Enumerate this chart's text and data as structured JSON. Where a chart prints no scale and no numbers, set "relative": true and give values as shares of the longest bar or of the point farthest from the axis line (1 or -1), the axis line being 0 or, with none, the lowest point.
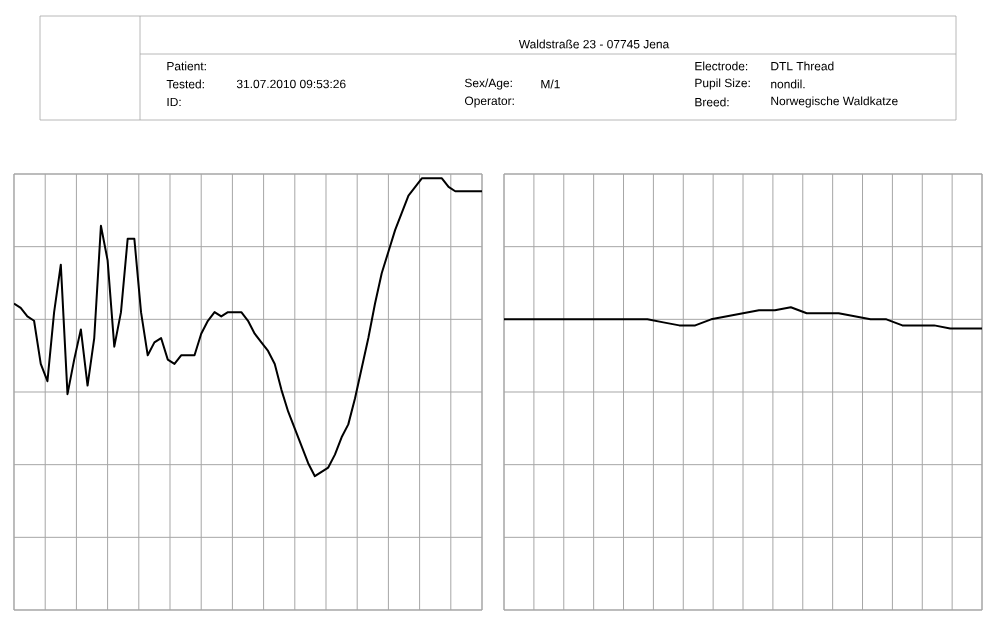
{
  "chart_data": [
    {
      "type": "other",
      "annotations": [
        "Waldstraße 23 - 07745 Jena",
        "Patient:",
        "Tested:",
        "31.07.2010 09:53:26",
        "ID:",
        "Sex/Age:",
        "M/1",
        "Operator:",
        "Electrode:",
        "DTL Thread",
        "Pupil Size:",
        "nondil.",
        "Breed:",
        "Norwegische Waldkatze"
      ]
    },
    {
      "type": "line",
      "relative": true,
      "grid": true,
      "color": "#000000",
      "categories": [
        null,
        null,
        null,
        null,
        null,
        null,
        null,
        null,
        null,
        null,
        null,
        null,
        null,
        null,
        null,
        null,
        null,
        null,
        null,
        null,
        null,
        null,
        null,
        null,
        null,
        null,
        null,
        null,
        null,
        null,
        null,
        null,
        null,
        null,
        null,
        null,
        null,
        null,
        null,
        null,
        null,
        null,
        null,
        null,
        null,
        null,
        null,
        null,
        null,
        null,
        null,
        null,
        null,
        null,
        null,
        null,
        null,
        null,
        null,
        null,
        null,
        null,
        null,
        null,
        null,
        null,
        null,
        null,
        null,
        null,
        null
      ],
      "values": [
        0.71,
        0.7,
        0.68,
        0.67,
        0.57,
        0.53,
        0.69,
        0.8,
        0.5,
        0.58,
        0.65,
        0.52,
        0.63,
        0.89,
        0.81,
        0.61,
        0.69,
        0.86,
        0.86,
        0.69,
        0.59,
        0.62,
        0.63,
        0.58,
        0.57,
        0.59,
        0.59,
        0.59,
        0.64,
        0.67,
        0.69,
        0.68,
        0.69,
        0.69,
        0.69,
        0.67,
        0.64,
        0.62,
        0.6,
        0.57,
        0.51,
        0.46,
        0.42,
        0.38,
        0.34,
        0.31,
        0.32,
        0.33,
        0.36,
        0.4,
        0.43,
        0.49,
        0.56,
        0.63,
        0.71,
        0.78,
        0.83,
        0.88,
        0.92,
        0.96,
        0.98,
        1.0,
        1.0,
        1.0,
        1.0,
        0.98,
        0.97,
        0.97,
        0.97,
        0.97,
        0.97
      ]
    },
    {
      "type": "line",
      "relative": true,
      "grid": true,
      "color": "#000000",
      "categories": [
        null,
        null,
        null,
        null,
        null,
        null,
        null,
        null,
        null,
        null,
        null,
        null,
        null,
        null,
        null,
        null,
        null,
        null,
        null,
        null,
        null,
        null,
        null,
        null,
        null,
        null,
        null,
        null,
        null,
        null,
        null
      ],
      "values": [
        0.96,
        0.96,
        0.96,
        0.96,
        0.96,
        0.96,
        0.96,
        0.96,
        0.96,
        0.96,
        0.95,
        0.94,
        0.94,
        0.96,
        0.97,
        0.98,
        0.99,
        0.99,
        1.0,
        0.98,
        0.98,
        0.98,
        0.97,
        0.96,
        0.96,
        0.94,
        0.94,
        0.94,
        0.93,
        0.93,
        0.93
      ]
    }
  ]
}
